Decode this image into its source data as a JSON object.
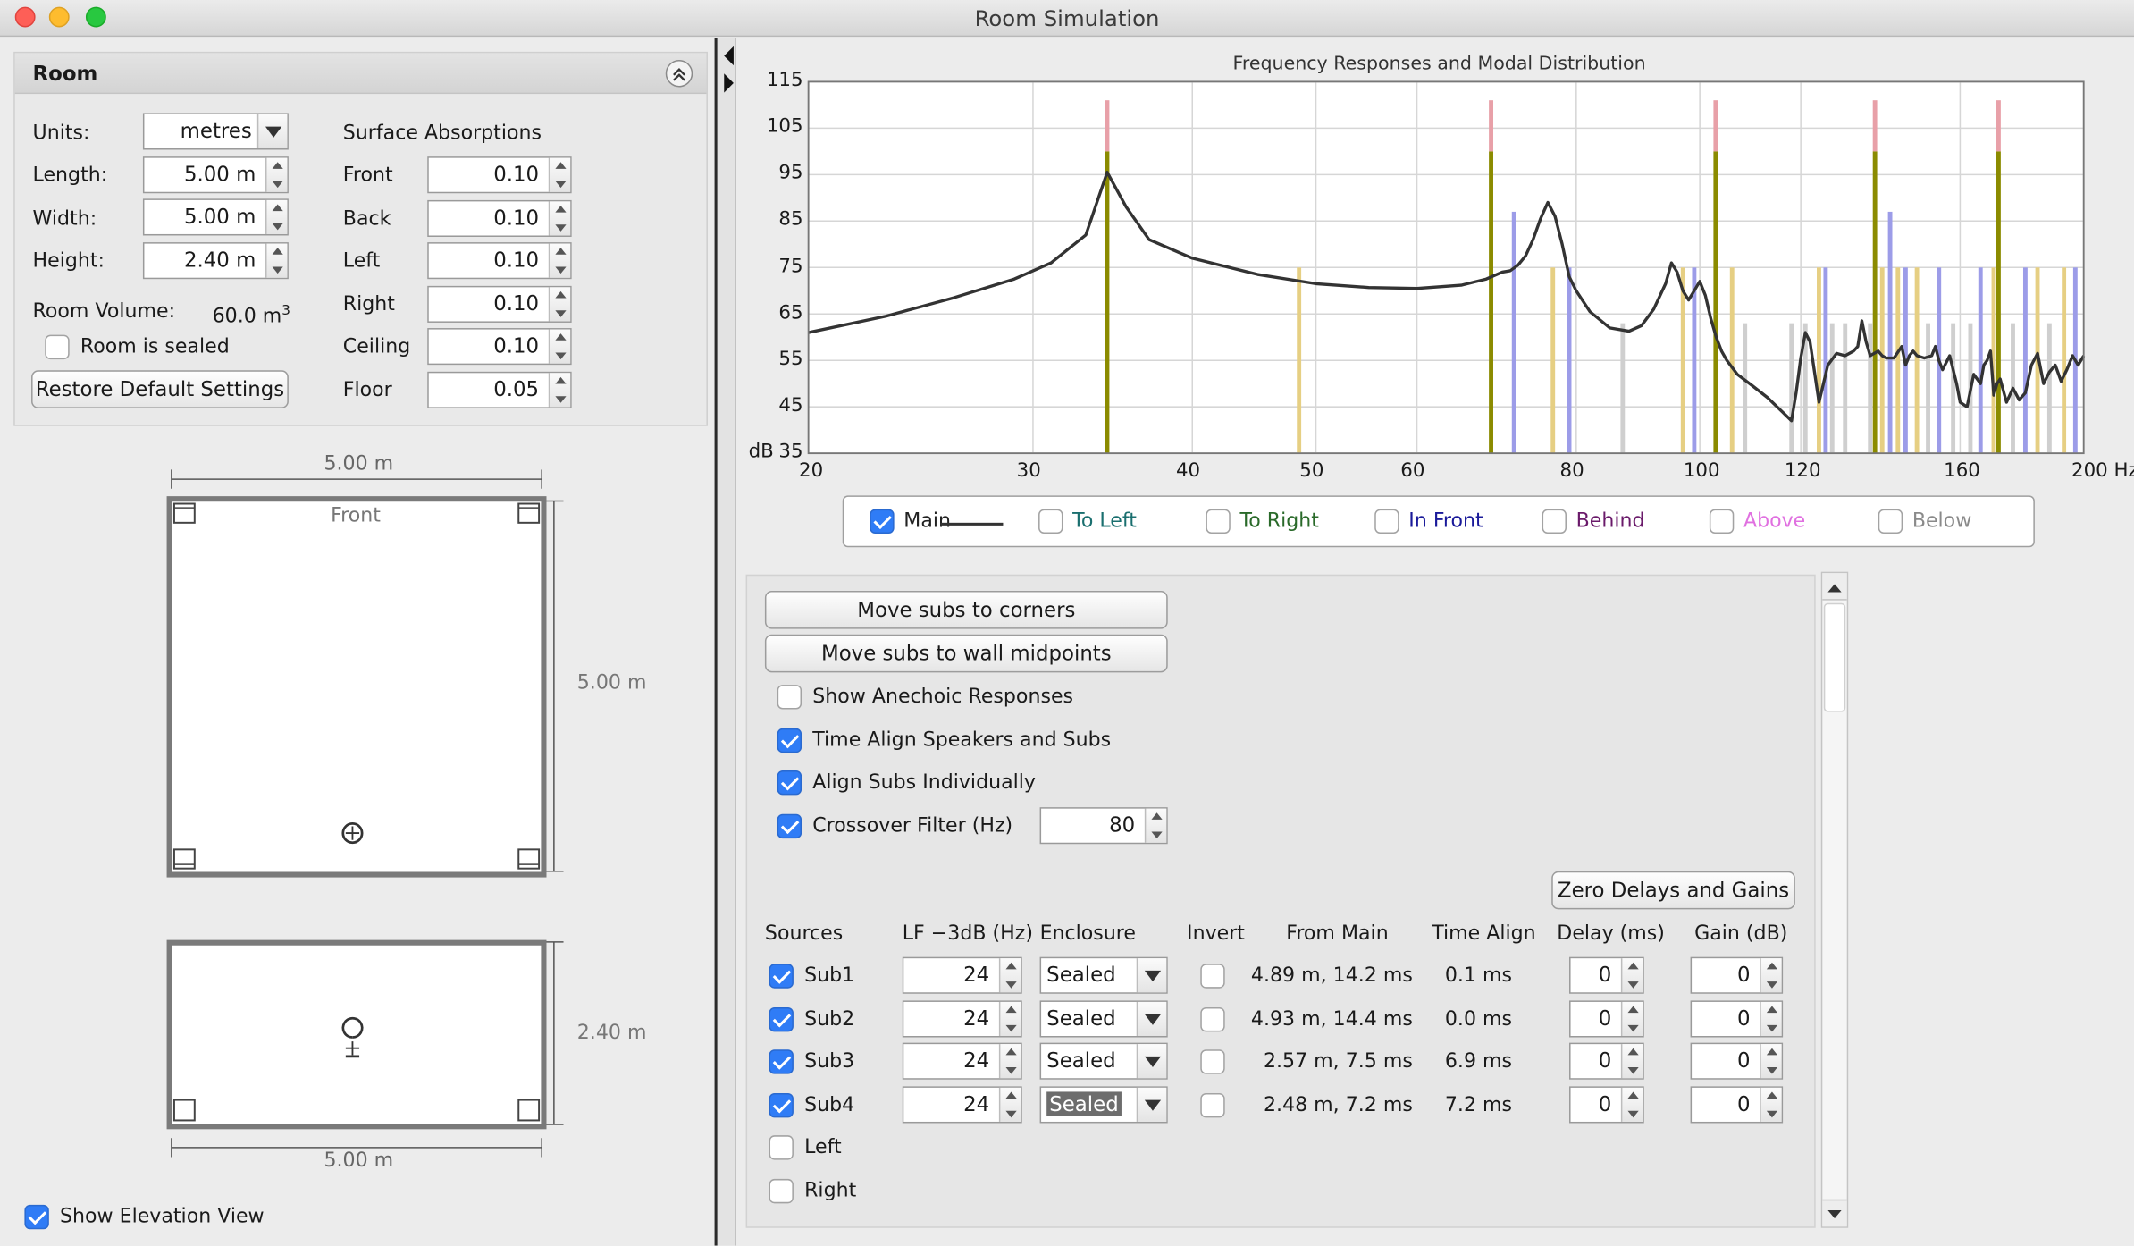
{
  "window": {
    "title": "Room Simulation"
  },
  "room": {
    "title": "Room",
    "units_label": "Units:",
    "units_value": "metres",
    "length_label": "Length:",
    "length_value": "5.00 m",
    "width_label": "Width:",
    "width_value": "5.00 m",
    "height_label": "Height:",
    "height_value": "2.40 m",
    "volume_label": "Room Volume:",
    "volume_value": "60.0 m",
    "volume_unit_sup": "3",
    "sealed_label": "Room is sealed",
    "sealed_checked": false,
    "restore_label": "Restore Default Settings",
    "absorptions_title": "Surface Absorptions",
    "absorptions": [
      {
        "label": "Front",
        "value": "0.10"
      },
      {
        "label": "Back",
        "value": "0.10"
      },
      {
        "label": "Left",
        "value": "0.10"
      },
      {
        "label": "Right",
        "value": "0.10"
      },
      {
        "label": "Ceiling",
        "value": "0.10"
      },
      {
        "label": "Floor",
        "value": "0.05"
      }
    ]
  },
  "plan": {
    "top_dim": "5.00 m",
    "side_dim": "5.00 m",
    "front_label": "Front"
  },
  "elevation": {
    "side_dim": "2.40 m",
    "bottom_dim": "5.00 m"
  },
  "show_elevation": {
    "label": "Show Elevation View",
    "checked": true
  },
  "chart_data": {
    "type": "line",
    "title": "Frequency Responses and Modal Distribution",
    "ylabel": "dB",
    "xlabel": "",
    "x_unit": "Hz",
    "x_scale": "log",
    "xlim": [
      20,
      200
    ],
    "ylim": [
      35,
      115
    ],
    "x_ticks": [
      20,
      30,
      40,
      50,
      60,
      80,
      100,
      120,
      160,
      200
    ],
    "x_tick_labels": [
      "20",
      "30",
      "40",
      "50",
      "60",
      "80",
      "100",
      "120",
      "160",
      "200 Hz"
    ],
    "y_ticks": [
      35,
      45,
      55,
      65,
      75,
      85,
      95,
      105,
      115
    ],
    "grid": true,
    "series": [
      {
        "name": "Main",
        "color": "#333333",
        "x": [
          20,
          23,
          26,
          29,
          31,
          33,
          34.3,
          35.5,
          37,
          40,
          45,
          50,
          55,
          60,
          65,
          68,
          70,
          71,
          72,
          73,
          74,
          75,
          76,
          77,
          78,
          79,
          80,
          82,
          85,
          88,
          90,
          92,
          94,
          95,
          96,
          97,
          98,
          99,
          100,
          101,
          102,
          103,
          104,
          105,
          107,
          110,
          113,
          116,
          118,
          119,
          120,
          121,
          122,
          123,
          124,
          126,
          128,
          130,
          131,
          132,
          133,
          134,
          135,
          136,
          138,
          139,
          140,
          142,
          144,
          145,
          146,
          147,
          148,
          150,
          152,
          153,
          154,
          155,
          157,
          159,
          160,
          162,
          164,
          166,
          167,
          168,
          169,
          170,
          171,
          172,
          174,
          176,
          178,
          180,
          182,
          184,
          186,
          188,
          190,
          192,
          194,
          196,
          198,
          200
        ],
        "y": [
          61,
          64.5,
          68.5,
          72.5,
          76,
          82,
          95.5,
          88,
          81,
          77,
          73.5,
          71.5,
          70.7,
          70.5,
          71.2,
          72.5,
          74,
          74.3,
          75.5,
          77.5,
          81,
          85.5,
          89,
          86,
          80,
          73,
          70,
          65.5,
          62,
          61.3,
          62.5,
          66,
          71.5,
          76,
          74,
          70,
          68,
          70,
          72,
          69,
          64,
          60,
          57,
          55,
          52,
          49.5,
          47,
          44,
          42,
          48,
          55.5,
          61,
          59,
          52.5,
          46,
          54,
          56.5,
          56,
          56.5,
          57,
          58,
          63.5,
          59,
          56,
          57,
          56,
          55.5,
          55.5,
          58,
          54,
          56,
          57,
          56,
          55.5,
          56,
          58,
          55,
          53,
          56,
          50,
          46,
          45,
          52,
          50,
          54,
          55,
          57,
          47.5,
          50,
          51,
          46,
          49,
          46.5,
          48,
          54,
          56.5,
          50,
          52.5,
          54,
          50.5,
          53,
          56,
          54,
          56
        ]
      }
    ],
    "modes": [
      {
        "f": 34.3,
        "type": "axial",
        "color": "#8b8b00",
        "level": 100,
        "peak_color": "#e8a0a8",
        "peak_level": 111
      },
      {
        "f": 68.6,
        "type": "axial",
        "color": "#8b8b00",
        "level": 100,
        "peak_color": "#e8a0a8",
        "peak_level": 111
      },
      {
        "f": 102.9,
        "type": "axial",
        "color": "#8b8b00",
        "level": 100,
        "peak_color": "#e8a0a8",
        "peak_level": 111
      },
      {
        "f": 137.2,
        "type": "axial",
        "color": "#8b8b00",
        "level": 100,
        "peak_color": "#e8a0a8",
        "peak_level": 111
      },
      {
        "f": 171.5,
        "type": "axial",
        "color": "#8b8b00",
        "level": 100,
        "peak_color": "#e8a0a8",
        "peak_level": 111
      },
      {
        "f": 48.5,
        "type": "tangential",
        "color": "#e6cf83",
        "level": 75
      },
      {
        "f": 71.5,
        "type": "oblique",
        "color": "#9c9ce8",
        "level": 87
      },
      {
        "f": 76.7,
        "type": "tangential",
        "color": "#e6cf83",
        "level": 75
      },
      {
        "f": 79,
        "type": "oblique",
        "color": "#9c9ce8",
        "level": 75
      },
      {
        "f": 87,
        "type": "other",
        "color": "#cfcfcf",
        "level": 63
      },
      {
        "f": 97,
        "type": "tangential",
        "color": "#e6cf83",
        "level": 75
      },
      {
        "f": 99,
        "type": "oblique",
        "color": "#9c9ce8",
        "level": 75
      },
      {
        "f": 106,
        "type": "tangential",
        "color": "#e6cf83",
        "level": 75
      },
      {
        "f": 108.5,
        "type": "other",
        "color": "#cfcfcf",
        "level": 63
      },
      {
        "f": 118,
        "type": "other",
        "color": "#cfcfcf",
        "level": 63
      },
      {
        "f": 121,
        "type": "other",
        "color": "#cfcfcf",
        "level": 63
      },
      {
        "f": 124,
        "type": "tangential",
        "color": "#e6cf83",
        "level": 75
      },
      {
        "f": 125.5,
        "type": "oblique",
        "color": "#9c9ce8",
        "level": 75
      },
      {
        "f": 127,
        "type": "other",
        "color": "#cfcfcf",
        "level": 63
      },
      {
        "f": 130,
        "type": "other",
        "color": "#cfcfcf",
        "level": 63
      },
      {
        "f": 136,
        "type": "other",
        "color": "#cfcfcf",
        "level": 63
      },
      {
        "f": 139,
        "type": "tangential",
        "color": "#e6cf83",
        "level": 75
      },
      {
        "f": 141,
        "type": "oblique",
        "color": "#9c9ce8",
        "level": 87
      },
      {
        "f": 143,
        "type": "tangential",
        "color": "#e6cf83",
        "level": 75
      },
      {
        "f": 145,
        "type": "oblique",
        "color": "#9c9ce8",
        "level": 75
      },
      {
        "f": 148,
        "type": "tangential",
        "color": "#e6cf83",
        "level": 75
      },
      {
        "f": 151,
        "type": "other",
        "color": "#cfcfcf",
        "level": 63
      },
      {
        "f": 154,
        "type": "oblique",
        "color": "#9c9ce8",
        "level": 75
      },
      {
        "f": 158,
        "type": "other",
        "color": "#cfcfcf",
        "level": 63
      },
      {
        "f": 163,
        "type": "other",
        "color": "#cfcfcf",
        "level": 63
      },
      {
        "f": 166,
        "type": "oblique",
        "color": "#9c9ce8",
        "level": 75
      },
      {
        "f": 170,
        "type": "tangential",
        "color": "#e6cf83",
        "level": 75
      },
      {
        "f": 176,
        "type": "other",
        "color": "#cfcfcf",
        "level": 63
      },
      {
        "f": 180,
        "type": "oblique",
        "color": "#9c9ce8",
        "level": 75
      },
      {
        "f": 184,
        "type": "tangential",
        "color": "#e6cf83",
        "level": 75
      },
      {
        "f": 188,
        "type": "other",
        "color": "#cfcfcf",
        "level": 63
      },
      {
        "f": 193,
        "type": "tangential",
        "color": "#e6cf83",
        "level": 75
      },
      {
        "f": 197,
        "type": "oblique",
        "color": "#9c9ce8",
        "level": 75
      }
    ]
  },
  "legend": [
    {
      "label": "Main",
      "color": "#222222",
      "checked": true
    },
    {
      "label": "To Left",
      "color": "#1a6f6f",
      "checked": false
    },
    {
      "label": "To Right",
      "color": "#2a6a2a",
      "checked": false
    },
    {
      "label": "In Front",
      "color": "#1a1a9a",
      "checked": false
    },
    {
      "label": "Behind",
      "color": "#6a1a6a",
      "checked": false
    },
    {
      "label": "Above",
      "color": "#e070e0",
      "checked": false
    },
    {
      "label": "Below",
      "color": "#8a8a8a",
      "checked": false
    }
  ],
  "controls": {
    "corners_label": "Move subs to corners",
    "midpoints_label": "Move subs to wall midpoints",
    "anechoic_label": "Show Anechoic Responses",
    "anechoic_checked": false,
    "timealign_label": "Time Align Speakers and Subs",
    "timealign_checked": true,
    "alignsubs_label": "Align Subs Individually",
    "alignsubs_checked": true,
    "crossover_label": "Crossover Filter (Hz)",
    "crossover_checked": true,
    "crossover_value": "80",
    "zero_label": "Zero Delays and Gains"
  },
  "sources": {
    "headers": {
      "sources": "Sources",
      "lf": "LF −3dB (Hz)",
      "enclosure": "Enclosure",
      "invert": "Invert",
      "from_main": "From Main",
      "time_align": "Time Align",
      "delay": "Delay (ms)",
      "gain": "Gain (dB)"
    },
    "rows": [
      {
        "name": "Sub1",
        "checked": true,
        "lf": "24",
        "enclosure": "Sealed",
        "invert": false,
        "from_main": "4.89 m, 14.2 ms",
        "time_align": "0.1 ms",
        "delay": "0",
        "gain": "0"
      },
      {
        "name": "Sub2",
        "checked": true,
        "lf": "24",
        "enclosure": "Sealed",
        "invert": false,
        "from_main": "4.93 m, 14.4 ms",
        "time_align": "0.0 ms",
        "delay": "0",
        "gain": "0"
      },
      {
        "name": "Sub3",
        "checked": true,
        "lf": "24",
        "enclosure": "Sealed",
        "invert": false,
        "from_main": "2.57 m, 7.5 ms",
        "time_align": "6.9 ms",
        "delay": "0",
        "gain": "0"
      },
      {
        "name": "Sub4",
        "checked": true,
        "lf": "24",
        "enclosure": "Sealed",
        "invert": false,
        "from_main": "2.48 m, 7.2 ms",
        "time_align": "7.2 ms",
        "delay": "0",
        "gain": "0",
        "enclosure_selected": true
      }
    ],
    "extra": [
      {
        "name": "Left",
        "checked": false
      },
      {
        "name": "Right",
        "checked": false
      }
    ]
  }
}
